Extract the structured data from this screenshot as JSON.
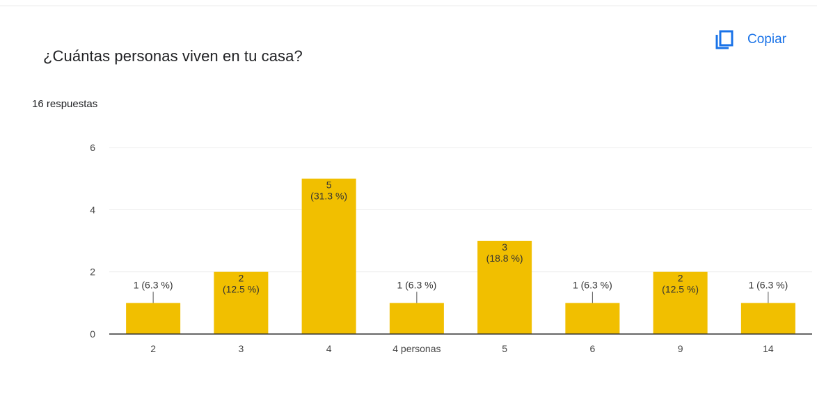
{
  "question": {
    "title": "¿Cuántas personas viven en tu casa?",
    "response_count": "16 respuestas"
  },
  "actions": {
    "copy_label": "Copiar",
    "copy_icon": "copy-icon"
  },
  "colors": {
    "bar": "#f1bf00",
    "accent": "#1a73e8",
    "grid": "#ececec",
    "axis": "#333333"
  },
  "chart_data": {
    "type": "bar",
    "title": "",
    "xlabel": "",
    "ylabel": "",
    "ylim": [
      0,
      6
    ],
    "yticks": [
      0,
      2,
      4,
      6
    ],
    "grid": true,
    "categories": [
      "2",
      "3",
      "4",
      "4 personas",
      "5",
      "6",
      "9",
      "14"
    ],
    "values": [
      1,
      2,
      5,
      1,
      3,
      1,
      2,
      1
    ],
    "data_labels": [
      [
        "1 (6.3 %)"
      ],
      [
        "2",
        "(12.5 %)"
      ],
      [
        "5",
        "(31.3 %)"
      ],
      [
        "1 (6.3 %)"
      ],
      [
        "3",
        "(18.8 %)"
      ],
      [
        "1 (6.3 %)"
      ],
      [
        "2",
        "(12.5 %)"
      ],
      [
        "1 (6.3 %)"
      ]
    ]
  }
}
